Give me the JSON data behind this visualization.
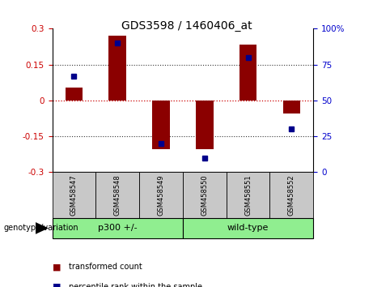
{
  "title": "GDS3598 / 1460406_at",
  "samples": [
    "GSM458547",
    "GSM458548",
    "GSM458549",
    "GSM458550",
    "GSM458551",
    "GSM458552"
  ],
  "bar_values": [
    0.055,
    0.27,
    -0.205,
    -0.205,
    0.235,
    -0.055
  ],
  "percentile_values": [
    67,
    90,
    20,
    10,
    80,
    30
  ],
  "ylim": [
    -0.3,
    0.3
  ],
  "yticks_left": [
    -0.3,
    -0.15,
    0,
    0.15,
    0.3
  ],
  "yticks_right": [
    0,
    25,
    50,
    75,
    100
  ],
  "bar_color": "#8B0000",
  "dot_color": "#00008B",
  "hline_red_color": "#CC0000",
  "grid_color": "#333333",
  "title_fontsize": 10,
  "tick_fontsize": 7.5,
  "legend_items": [
    "transformed count",
    "percentile rank within the sample"
  ],
  "genotype_label": "genotype/variation",
  "group1_label": "p300 +/-",
  "group2_label": "wild-type",
  "group_color": "#90EE90",
  "sample_box_color": "#C8C8C8"
}
